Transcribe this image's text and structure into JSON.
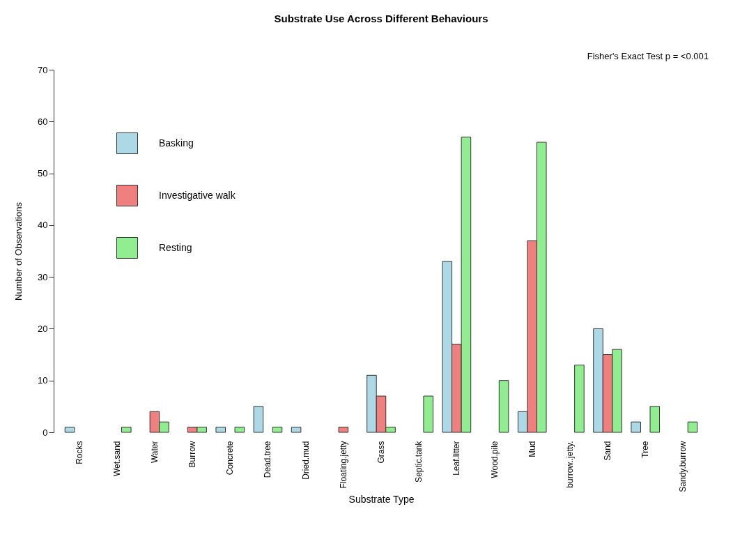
{
  "chart_data": {
    "type": "bar",
    "title": "Substrate Use Across Different Behaviours",
    "annotations": [
      "Fisher's Exact Test p = <0.001"
    ],
    "xlabel": "Substrate Type",
    "ylabel": "Number of Observations",
    "categories": [
      "Rocks",
      "Wet.sand",
      "Water",
      "Burrow",
      "Concrete",
      "Dead.tree",
      "Dried.mud",
      "Floating.jetty",
      "Grass",
      "Septic.tank",
      "Leaf.litter",
      "Wood.pile",
      "Mud",
      "burrow..jetty.",
      "Sand",
      "Tree",
      "Sandy.burrow"
    ],
    "series": [
      {
        "name": "Basking",
        "color": "#add8e6",
        "values": [
          1,
          0,
          0,
          0,
          1,
          5,
          1,
          0,
          11,
          0,
          33,
          0,
          4,
          0,
          20,
          2,
          0
        ]
      },
      {
        "name": "Investigative walk",
        "color": "#f08080",
        "values": [
          0,
          0,
          4,
          1,
          0,
          0,
          0,
          1,
          7,
          0,
          17,
          0,
          37,
          0,
          15,
          0,
          0
        ]
      },
      {
        "name": "Resting",
        "color": "#90ee90",
        "values": [
          0,
          1,
          2,
          1,
          1,
          1,
          0,
          0,
          1,
          7,
          57,
          10,
          56,
          13,
          16,
          5,
          2
        ]
      }
    ],
    "ylim": [
      0,
      70
    ],
    "yticks": [
      0,
      10,
      20,
      30,
      40,
      50,
      60,
      70
    ],
    "grid": false,
    "legend": "top left"
  }
}
